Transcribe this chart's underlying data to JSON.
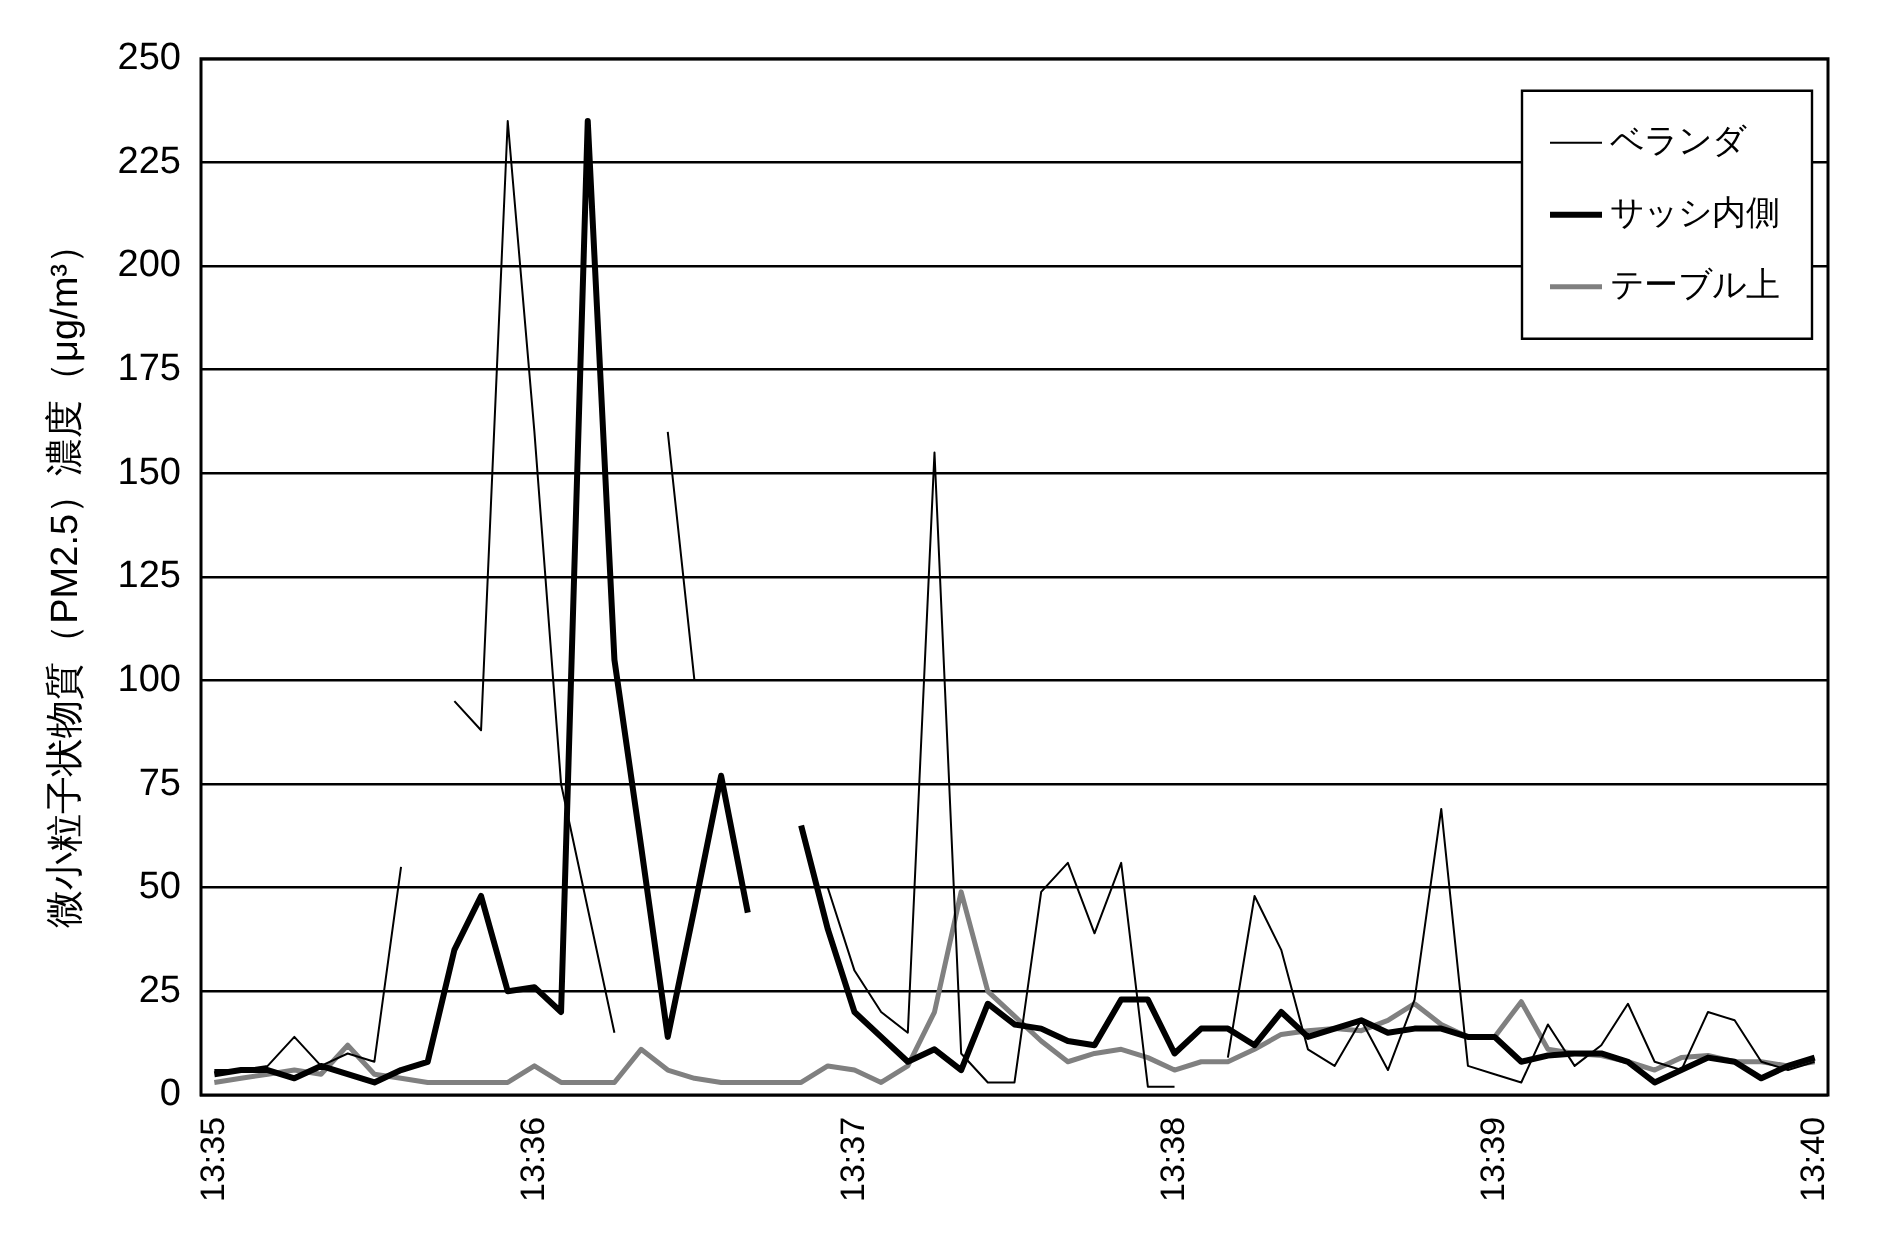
{
  "chart_data": {
    "type": "line",
    "ylabel": "微小粒子状物質（PM2.5）濃度（μg/m³）",
    "categories": [
      "13:35",
      null,
      null,
      null,
      null,
      null,
      null,
      null,
      null,
      null,
      null,
      null,
      "13:36",
      null,
      null,
      null,
      null,
      null,
      null,
      null,
      null,
      null,
      null,
      null,
      "13:37",
      null,
      null,
      null,
      null,
      null,
      null,
      null,
      null,
      null,
      null,
      null,
      "13:38",
      null,
      null,
      null,
      null,
      null,
      null,
      null,
      null,
      null,
      null,
      null,
      "13:39",
      null,
      null,
      null,
      null,
      null,
      null,
      null,
      null,
      null,
      null,
      null,
      "13:40"
    ],
    "series": [
      {
        "name": "ベランダ",
        "color": "#000000",
        "values": [
          6,
          6,
          7,
          14,
          7,
          10,
          8,
          55,
          null,
          95,
          88,
          235,
          160,
          75,
          45,
          15,
          null,
          160,
          100,
          null,
          null,
          null,
          null,
          50,
          30,
          20,
          15,
          155,
          10,
          3,
          3,
          49,
          56,
          39,
          56,
          2,
          2,
          null,
          9,
          48,
          35,
          11,
          7,
          18,
          6,
          23,
          69,
          7,
          5,
          3,
          17,
          7,
          12,
          22,
          8,
          6,
          20,
          18,
          8,
          6,
          8
        ]
      },
      {
        "name": "サッシ内側",
        "color": "#000000",
        "values": [
          5,
          6,
          6,
          4,
          7,
          5,
          3,
          6,
          8,
          35,
          48,
          25,
          26,
          20,
          235,
          105,
          60,
          14,
          45,
          77,
          44,
          null,
          65,
          40,
          20,
          14,
          8,
          11,
          6,
          22,
          17,
          16,
          13,
          12,
          23,
          23,
          10,
          16,
          16,
          12,
          20,
          14,
          16,
          18,
          15,
          16,
          16,
          14,
          14,
          8,
          9.5,
          10,
          10,
          8,
          3,
          6,
          9,
          8,
          4,
          7,
          9
        ]
      },
      {
        "name": "テーブル上",
        "color": "#808080",
        "values": [
          3,
          4,
          5,
          6,
          5,
          12,
          5,
          4,
          3,
          3,
          3,
          3,
          7,
          3,
          3,
          3,
          11,
          6,
          4,
          3,
          3,
          3,
          3,
          7,
          6,
          3,
          7,
          20,
          49,
          25,
          19,
          13,
          8,
          10,
          11,
          9,
          6,
          8,
          8,
          11,
          14.6,
          15.5,
          16,
          15.5,
          18,
          22,
          17,
          14,
          14,
          22.5,
          11,
          10,
          9.5,
          8,
          6,
          9,
          9.5,
          8,
          8,
          7,
          8
        ]
      }
    ],
    "ylim": [
      0,
      250
    ],
    "yticks": [
      0,
      25,
      50,
      75,
      100,
      125,
      150,
      175,
      200,
      225,
      250
    ],
    "grid": "y",
    "legend": "top right",
    "marker": "none",
    "line_style": "solid"
  }
}
